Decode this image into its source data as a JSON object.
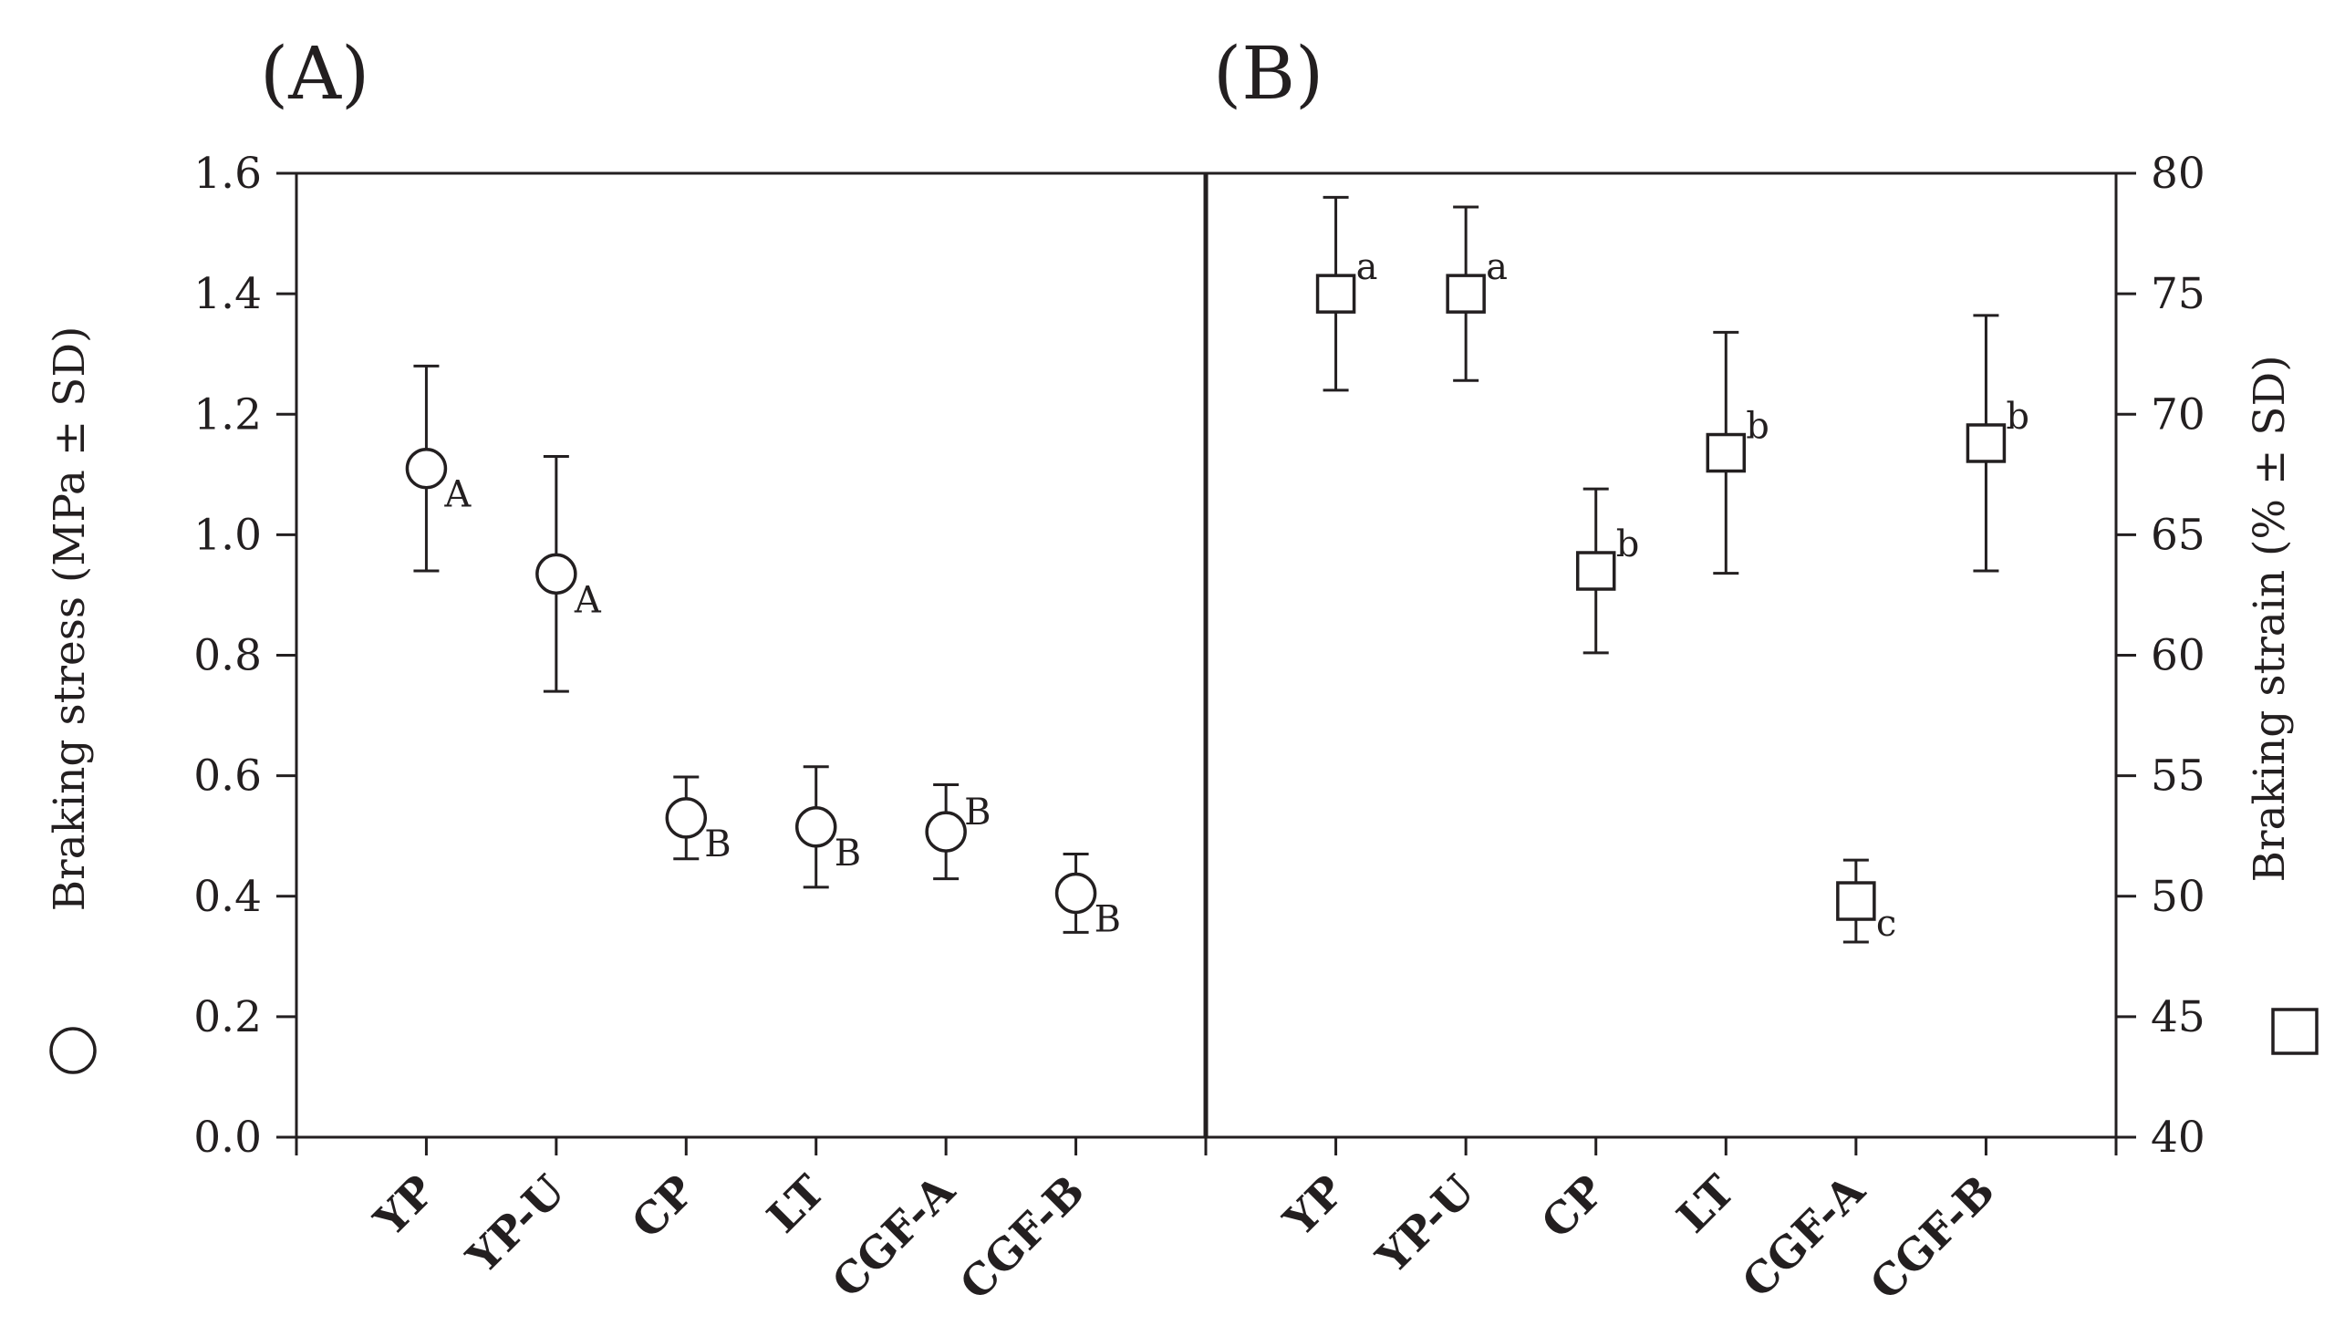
{
  "chart_data": [
    {
      "type": "scatter",
      "panel_label": "(A)",
      "categories": [
        "YP",
        "YP-U",
        "CP",
        "LT",
        "CGF-A",
        "CGF-B"
      ],
      "marker": "circle",
      "ylabel": "Braking stress (MPa ± SD)",
      "ylim": [
        0,
        1.6
      ],
      "yticks": [
        "0.0",
        "0.2",
        "0.4",
        "0.6",
        "0.8",
        "1.0",
        "1.2",
        "1.4",
        "1.6"
      ],
      "series": [
        {
          "values": [
            1.11,
            0.935,
            0.53,
            0.515,
            0.507,
            0.405
          ],
          "sd": [
            0.17,
            0.195,
            0.068,
            0.1,
            0.078,
            0.065
          ],
          "significance": [
            "A",
            "A",
            "B",
            "B",
            "B",
            "B"
          ]
        }
      ]
    },
    {
      "type": "scatter",
      "panel_label": "(B)",
      "categories": [
        "YP",
        "YP-U",
        "CP",
        "LT",
        "CGF-A",
        "CGF-B"
      ],
      "marker": "square",
      "ylabel": "Braking strain (% ± SD)",
      "ylim": [
        40,
        80
      ],
      "yticks": [
        "40",
        "45",
        "50",
        "55",
        "60",
        "65",
        "70",
        "75",
        "80"
      ],
      "series": [
        {
          "values": [
            75.0,
            75.0,
            63.5,
            68.4,
            49.8,
            68.8
          ],
          "sd": [
            4.0,
            3.6,
            3.4,
            5.0,
            1.7,
            5.3
          ],
          "significance": [
            "a",
            "a",
            "b",
            "b",
            "c",
            "b"
          ]
        }
      ]
    }
  ]
}
